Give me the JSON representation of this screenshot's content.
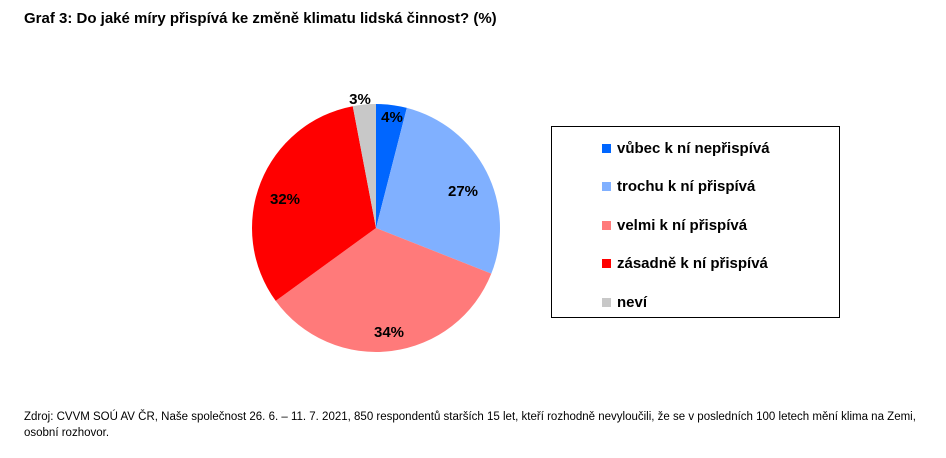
{
  "chart_data": {
    "type": "pie",
    "title": "Graf 3: Do jaké míry přispívá ke změně klimatu lidská činnost? (%)",
    "unit": "%",
    "legend_position": "right",
    "slices": [
      {
        "label": "vůbec k ní nepřispívá",
        "value": 4,
        "display": "4%",
        "color": "#0066ff"
      },
      {
        "label": "trochu k ní přispívá",
        "value": 27,
        "display": "27%",
        "color": "#80b0ff"
      },
      {
        "label": "velmi k ní přispívá",
        "value": 34,
        "display": "34%",
        "color": "#ff7a7a"
      },
      {
        "label": "zásadně k ní přispívá",
        "value": 32,
        "display": "32%",
        "color": "#ff0000"
      },
      {
        "label": "neví",
        "value": 3,
        "display": "3%",
        "color": "#c8c8c8"
      }
    ]
  },
  "source": "Zdroj: CVVM SOÚ AV ČR, Naše společnost 26. 6. – 11. 7. 2021, 850 respondentů starších 15 let, kteří rozhodně nevyloučili, že se v posledních 100 letech mění klima na Zemi, osobní rozhovor."
}
